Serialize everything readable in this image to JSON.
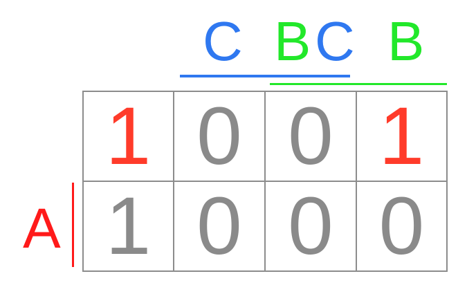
{
  "column_labels": {
    "c": "C",
    "bc_b": "B",
    "bc_c": "C",
    "b": "B"
  },
  "row_labels": {
    "a": "A"
  },
  "cells": [
    [
      "1",
      "0",
      "0",
      "1"
    ],
    [
      "1",
      "0",
      "0",
      "0"
    ]
  ],
  "highlighted": [
    [
      true,
      false,
      false,
      true
    ],
    [
      false,
      false,
      false,
      false
    ]
  ],
  "colors": {
    "c_label": "#2f78f0",
    "b_label": "#22e82a",
    "a_label": "#ff1a1a",
    "highlight_digit": "#ff3b2a",
    "normal_digit": "#8a8a8a",
    "grid_line": "#8c8c8c"
  }
}
